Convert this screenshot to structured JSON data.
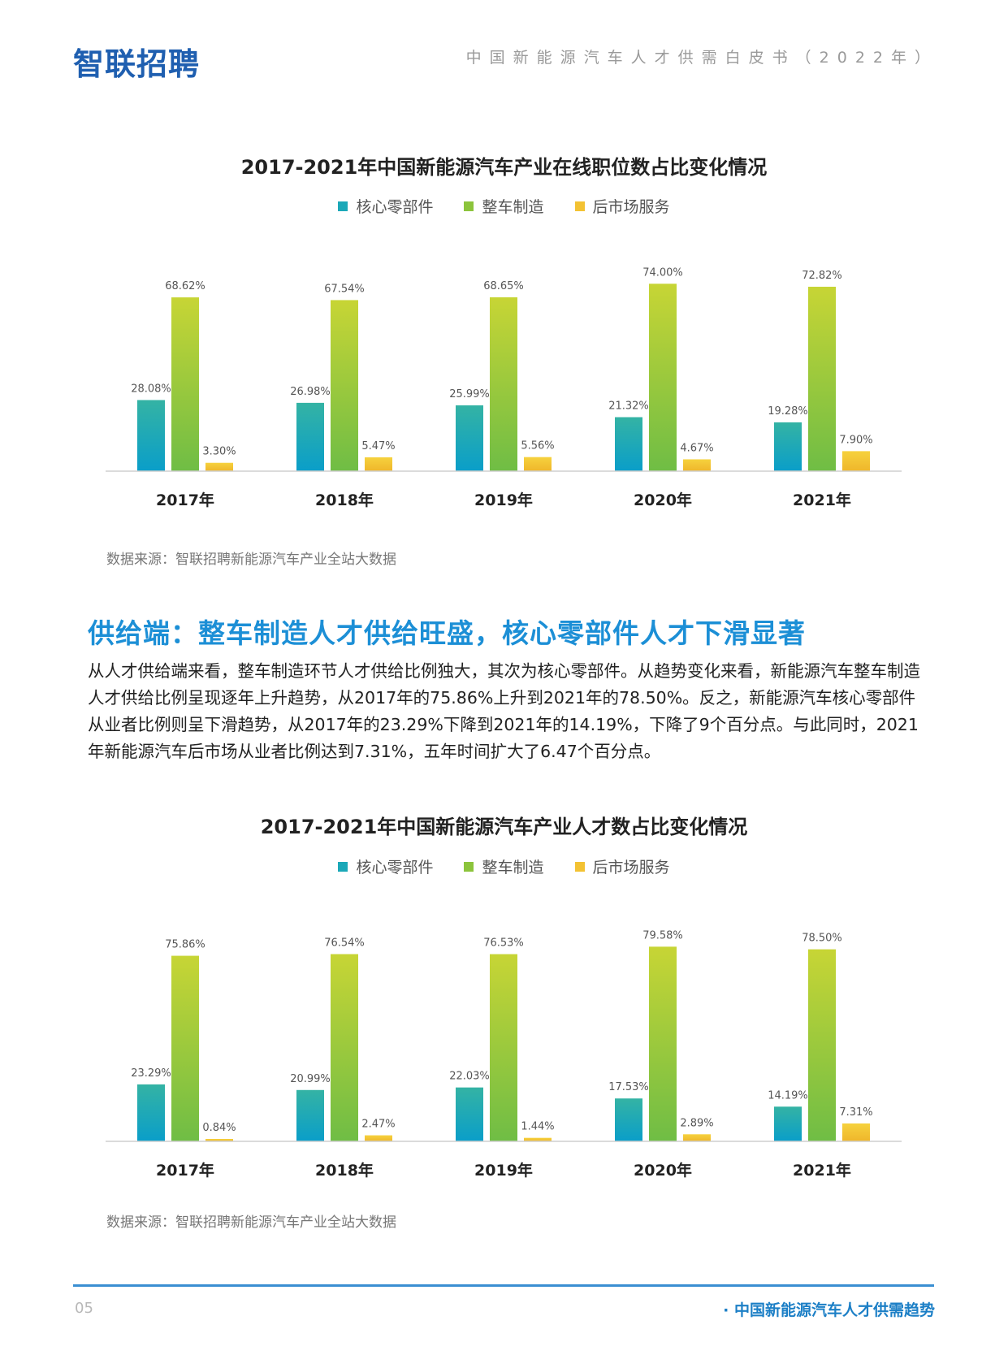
{
  "header": {
    "logo": "智联招聘",
    "doc_title": "中国新能源汽车人才供需白皮书（2022年）"
  },
  "colors": {
    "series_teal": "#1ba8b8",
    "series_green": "#8cc43c",
    "series_yellow": "#f3c233",
    "heading_blue": "#1c8fd6"
  },
  "section": {
    "heading": "供给端：整车制造人才供给旺盛，核心零部件人才下滑显著",
    "paragraph": "从人才供给端来看，整车制造环节人才供给比例独大，其次为核心零部件。从趋势变化来看，新能源汽车整车制造人才供给比例呈现逐年上升趋势，从2017年的75.86%上升到2021年的78.50%。反之，新能源汽车核心零部件从业者比例则呈下滑趋势，从2017年的23.29%下降到2021年的14.19%，下降了9个百分点。与此同时，2021年新能源汽车后市场从业者比例达到7.31%，五年时间扩大了6.47个百分点。"
  },
  "chart_data": [
    {
      "type": "bar",
      "title": "2017-2021年中国新能源汽车产业在线职位数占比变化情况",
      "categories": [
        "2017年",
        "2018年",
        "2019年",
        "2020年",
        "2021年"
      ],
      "series": [
        {
          "name": "核心零部件",
          "values": [
            28.08,
            26.98,
            25.99,
            21.32,
            19.28
          ],
          "labels": [
            "28.08%",
            "26.98%",
            "25.99%",
            "21.32%",
            "19.28%"
          ]
        },
        {
          "name": "整车制造",
          "values": [
            68.62,
            67.54,
            68.65,
            74.0,
            72.82
          ],
          "labels": [
            "68.62%",
            "67.54%",
            "68.65%",
            "74.00%",
            "72.82%"
          ]
        },
        {
          "name": "后市场服务",
          "values": [
            3.3,
            5.47,
            5.56,
            4.67,
            7.9
          ],
          "labels": [
            "3.30%",
            "5.47%",
            "5.56%",
            "4.67%",
            "7.90%"
          ]
        }
      ],
      "ylim": [
        0,
        85
      ],
      "legend": "top-center",
      "grid": false,
      "source": "数据来源：智联招聘新能源汽车产业全站大数据"
    },
    {
      "type": "bar",
      "title": "2017-2021年中国新能源汽车产业人才数占比变化情况",
      "categories": [
        "2017年",
        "2018年",
        "2019年",
        "2020年",
        "2021年"
      ],
      "series": [
        {
          "name": "核心零部件",
          "values": [
            23.29,
            20.99,
            22.03,
            17.53,
            14.19
          ],
          "labels": [
            "23.29%",
            "20.99%",
            "22.03%",
            "17.53%",
            "14.19%"
          ]
        },
        {
          "name": "整车制造",
          "values": [
            75.86,
            76.54,
            76.53,
            79.58,
            78.5
          ],
          "labels": [
            "75.86%",
            "76.54%",
            "76.53%",
            "79.58%",
            "78.50%"
          ]
        },
        {
          "name": "后市场服务",
          "values": [
            0.84,
            2.47,
            1.44,
            2.89,
            7.31
          ],
          "labels": [
            "0.84%",
            "2.47%",
            "1.44%",
            "2.89%",
            "7.31%"
          ]
        }
      ],
      "ylim": [
        0,
        88
      ],
      "legend": "top-center",
      "grid": false,
      "source": "数据来源：智联招聘新能源汽车产业全站大数据"
    }
  ],
  "footer": {
    "page_number": "05",
    "title": "· 中国新能源汽车人才供需趋势"
  }
}
